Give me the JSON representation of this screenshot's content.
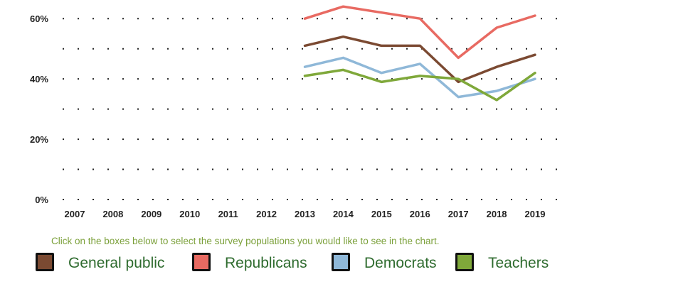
{
  "chart_data": {
    "type": "line",
    "x": [
      "2007",
      "2008",
      "2009",
      "2010",
      "2011",
      "2012",
      "2013",
      "2014",
      "2015",
      "2016",
      "2017",
      "2018",
      "2019"
    ],
    "ylim": [
      0,
      65
    ],
    "y_ticks": [
      {
        "value": 0,
        "label": "0%"
      },
      {
        "value": 10,
        "label": ""
      },
      {
        "value": 20,
        "label": "20%"
      },
      {
        "value": 30,
        "label": ""
      },
      {
        "value": 40,
        "label": "40%"
      },
      {
        "value": 50,
        "label": ""
      },
      {
        "value": 60,
        "label": "60%"
      }
    ],
    "grid": "dotted horizontal",
    "series": [
      {
        "name": "General public",
        "color": "#7b4a32",
        "values": [
          null,
          null,
          null,
          null,
          null,
          null,
          51,
          54,
          51,
          51,
          39,
          44,
          48
        ]
      },
      {
        "name": "Republicans",
        "color": "#e86a62",
        "values": [
          null,
          null,
          null,
          null,
          null,
          null,
          60,
          64,
          62,
          60,
          47,
          57,
          61
        ]
      },
      {
        "name": "Democrats",
        "color": "#8fb8d8",
        "values": [
          null,
          null,
          null,
          null,
          null,
          null,
          44,
          47,
          42,
          45,
          34,
          36,
          40
        ]
      },
      {
        "name": "Teachers",
        "color": "#7fa83a",
        "values": [
          null,
          null,
          null,
          null,
          null,
          null,
          41,
          43,
          39,
          41,
          40,
          33,
          42
        ]
      }
    ]
  },
  "instruction": "Click on the boxes below to select the survey populations you would like to see in the chart.",
  "legend": [
    {
      "label": "General public",
      "color": "#7b4a32"
    },
    {
      "label": "Republicans",
      "color": "#e86a62"
    },
    {
      "label": "Democrats",
      "color": "#8fb8d8"
    },
    {
      "label": "Teachers",
      "color": "#7fa83a"
    }
  ]
}
